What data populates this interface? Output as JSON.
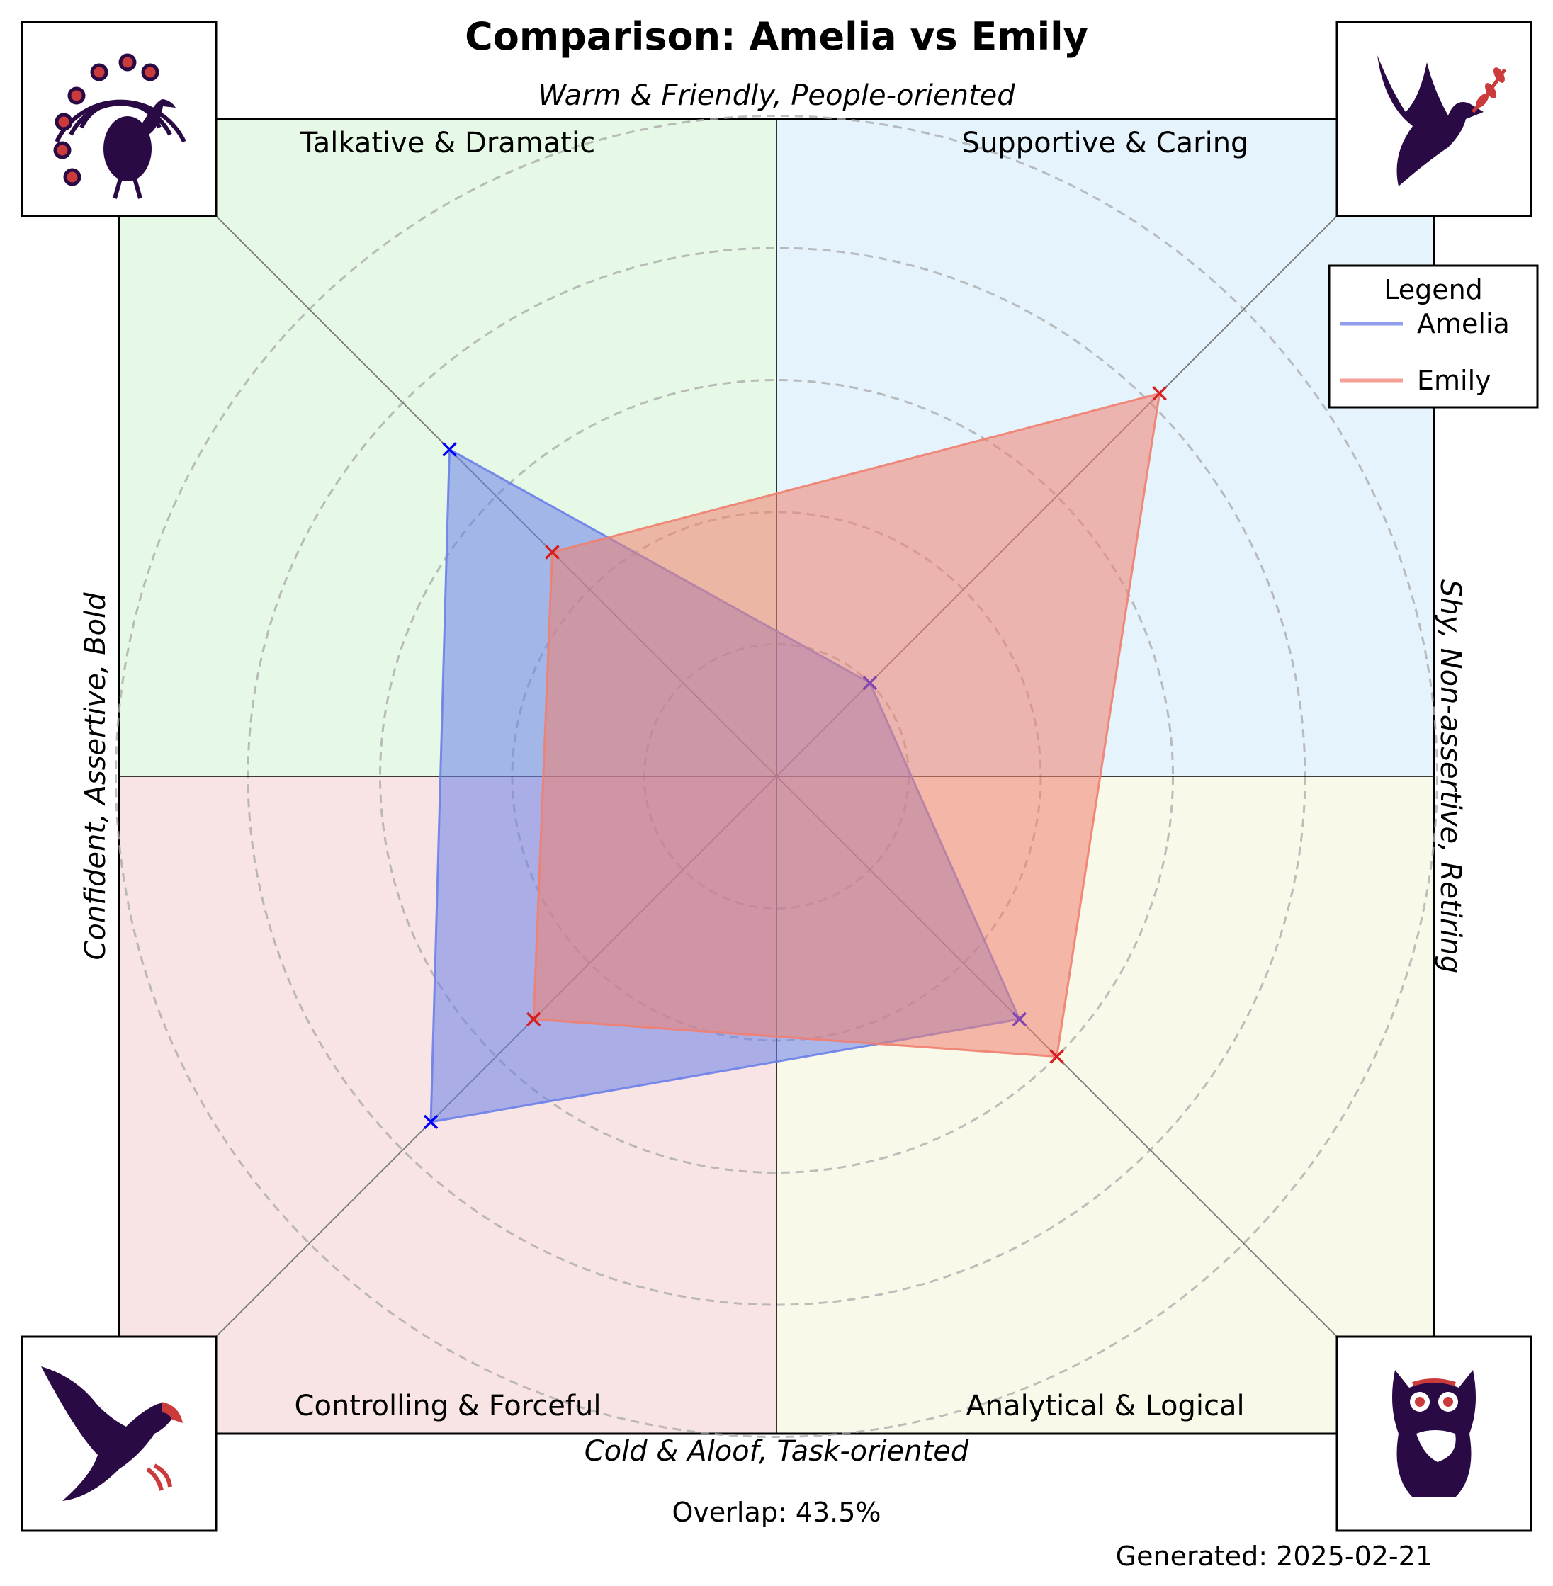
{
  "chart_data": {
    "type": "radar",
    "title": "Comparison: Amelia vs Emily",
    "axis_labels": {
      "top": "Warm & Friendly, People-oriented",
      "bottom": "Cold & Aloof, Task-oriented",
      "left": "Confident, Assertive, Bold",
      "right": "Shy, Non-assertive, Retiring"
    },
    "quadrants": [
      {
        "name": "Talkative & Dramatic",
        "position": "top-left",
        "color": "#e6f8e6",
        "icon": "peacock-icon"
      },
      {
        "name": "Supportive & Caring",
        "position": "top-right",
        "color": "#e5f4fc",
        "icon": "dove-icon"
      },
      {
        "name": "Controlling & Forceful",
        "position": "bottom-left",
        "color": "#f8e4e4",
        "icon": "eagle-icon"
      },
      {
        "name": "Analytical & Logical",
        "position": "bottom-right",
        "color": "#f9f9ea",
        "icon": "owl-icon"
      }
    ],
    "axes_order": [
      "Supportive & Caring",
      "Talkative & Dramatic",
      "Controlling & Forceful",
      "Analytical & Logical"
    ],
    "rmax": 5,
    "ring_values": [
      1,
      2,
      3,
      4,
      5
    ],
    "series": [
      {
        "name": "Amelia",
        "color": "#6a7fe8",
        "marker_color": "#0000ff",
        "values": [
          1.0,
          3.5,
          3.7,
          2.6
        ]
      },
      {
        "name": "Emily",
        "color": "#f08070",
        "marker_color": "#d42020",
        "values": [
          4.1,
          2.4,
          2.6,
          3.0
        ]
      }
    ],
    "legend": {
      "title": "Legend",
      "position": "top-right"
    },
    "overlap_text": "Overlap: 43.5%",
    "generated_text": "Generated: 2025-02-21"
  }
}
